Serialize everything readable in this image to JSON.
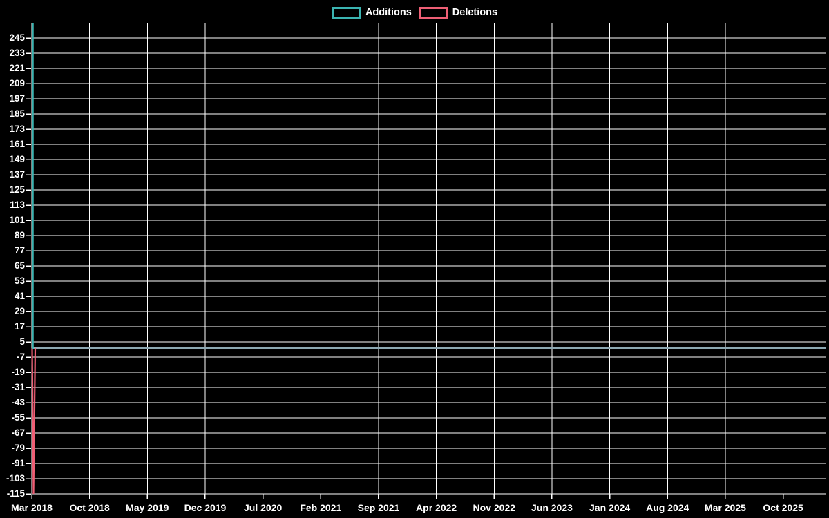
{
  "page": {
    "background_color": "#000000",
    "text_color": "#ffffff"
  },
  "chart_data": {
    "type": "line",
    "title": "",
    "legend_position": "top-center",
    "grid": {
      "show": true,
      "color": "#ffffff"
    },
    "x_ticks": [
      "Mar 2018",
      "Oct 2018",
      "May 2019",
      "Dec 2019",
      "Jul 2020",
      "Feb 2021",
      "Sep 2021",
      "Apr 2022",
      "Nov 2022",
      "Jun 2023",
      "Jan 2024",
      "Aug 2024",
      "Mar 2025",
      "Oct 2025"
    ],
    "y_ticks": [
      245,
      233,
      221,
      209,
      197,
      185,
      173,
      161,
      149,
      137,
      125,
      113,
      101,
      89,
      77,
      65,
      53,
      41,
      29,
      17,
      5,
      -7,
      -19,
      -31,
      -43,
      -55,
      -67,
      -79,
      -91,
      -103,
      -115
    ],
    "ylim": [
      -115,
      257
    ],
    "series": [
      {
        "name": "Additions",
        "color": "#3bb4b1",
        "points": [
          [
            "Mar 2018 (first week)",
            257
          ],
          [
            "all later weeks through Oct 2025",
            0
          ]
        ]
      },
      {
        "name": "Deletions",
        "color": "#ee5f75",
        "points": [
          [
            "Mar 2018 (first week)",
            -115
          ],
          [
            "all later weeks through Oct 2025",
            0
          ]
        ]
      }
    ],
    "zero_overlap_line_color": "#8ca8b2"
  }
}
